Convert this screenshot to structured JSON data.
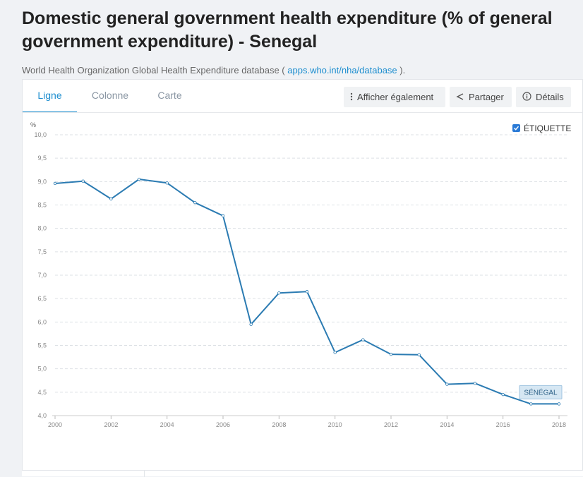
{
  "title": "Domestic general government health expenditure (% of general government expenditure) - Senegal",
  "source": {
    "prefix": "World Health Organization Global Health Expenditure database ( ",
    "link_text": "apps.who.int/nha/database",
    "suffix": " )."
  },
  "tabs": [
    {
      "label": "Ligne",
      "active": true
    },
    {
      "label": "Colonne",
      "active": false
    },
    {
      "label": "Carte",
      "active": false
    }
  ],
  "toolbar": {
    "show_also_label": "Afficher également",
    "share_label": "Partager",
    "details_label": "Détails"
  },
  "label_toggle": "ÉTIQUETTE",
  "colors": {
    "accent": "#1d8ecf",
    "line": "#2b7bb2",
    "grid": "#dde1e5",
    "series_label_bg": "#d6e7f3"
  },
  "chart_data": {
    "type": "line",
    "title": "Domestic general government health expenditure (% of general government expenditure) - Senegal",
    "ylabel": "%",
    "xlabel": "",
    "ylim": [
      4.0,
      10.0
    ],
    "yticks": [
      "4,0",
      "4,5",
      "5,0",
      "5,5",
      "6,0",
      "6,5",
      "7,0",
      "7,5",
      "8,0",
      "8,5",
      "9,0",
      "9,5",
      "10,0"
    ],
    "xticks": [
      "2000",
      "2002",
      "2004",
      "2006",
      "2008",
      "2010",
      "2012",
      "2014",
      "2016",
      "2018"
    ],
    "grid": true,
    "series": [
      {
        "name": "SÉNÉGAL",
        "x": [
          2000,
          2001,
          2002,
          2003,
          2004,
          2005,
          2006,
          2007,
          2008,
          2009,
          2010,
          2011,
          2012,
          2013,
          2014,
          2015,
          2016,
          2017,
          2018
        ],
        "values": [
          8.96,
          9.01,
          8.63,
          9.05,
          8.97,
          8.55,
          8.27,
          5.95,
          6.62,
          6.65,
          5.35,
          5.62,
          5.31,
          5.3,
          4.67,
          4.69,
          4.45,
          4.25,
          4.25
        ]
      }
    ]
  }
}
